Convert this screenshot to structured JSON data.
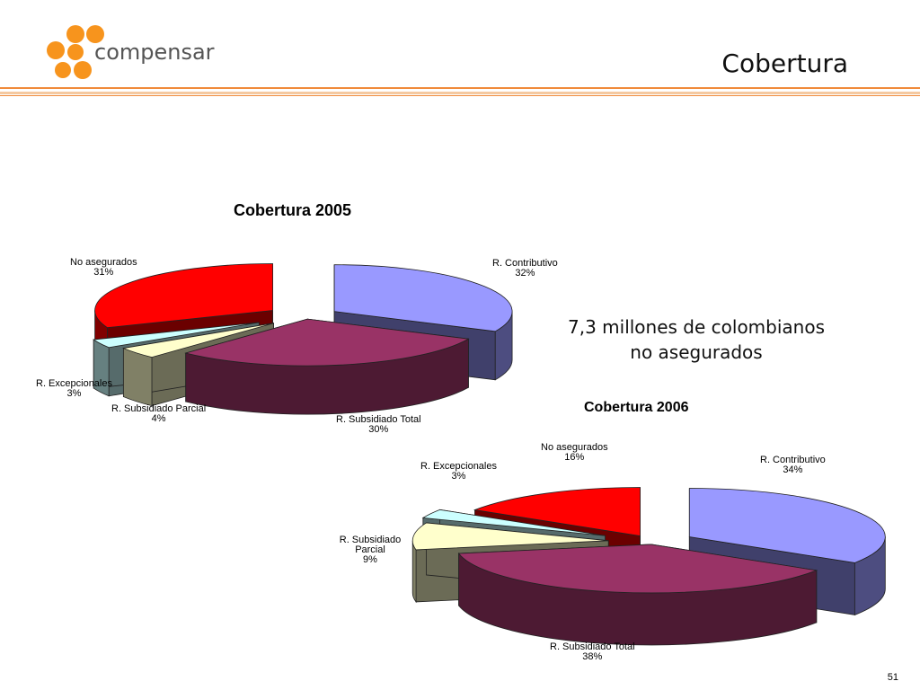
{
  "header": {
    "logo_text": "compensar",
    "title": "Cobertura"
  },
  "note": {
    "line1": "7,3 millones de colombianos",
    "line2": "no asegurados"
  },
  "page_number": "51",
  "colors": {
    "accent": "#F08A3A",
    "logo_orange": "#F7941D"
  },
  "chart_data": [
    {
      "type": "pie",
      "title": "Cobertura 2005",
      "slices": [
        {
          "label": "R. Contributivo",
          "value": 32,
          "display": "32%",
          "color": "#9999FF"
        },
        {
          "label": "R. Subsidiado Total",
          "value": 30,
          "display": "30%",
          "color": "#993366"
        },
        {
          "label": "R. Subsidiado Parcial",
          "value": 4,
          "display": "4%",
          "color": "#FFFFCC"
        },
        {
          "label": "R. Excepcionales",
          "value": 3,
          "display": "3%",
          "color": "#CCFFFF"
        },
        {
          "label": "No asegurados",
          "value": 31,
          "display": "31%",
          "color": "#FF0000"
        }
      ]
    },
    {
      "type": "pie",
      "title": "Cobertura 2006",
      "slices": [
        {
          "label": "R. Contributivo",
          "value": 34,
          "display": "34%",
          "color": "#9999FF"
        },
        {
          "label": "R. Subsidiado Total",
          "value": 38,
          "display": "38%",
          "color": "#993366"
        },
        {
          "label": "R. Subsidiado Parcial",
          "value": 9,
          "display": "9%",
          "color": "#FFFFCC"
        },
        {
          "label": "R. Excepcionales",
          "value": 3,
          "display": "3%",
          "color": "#CCFFFF"
        },
        {
          "label": "No asegurados",
          "value": 16,
          "display": "16%",
          "color": "#FF0000"
        }
      ]
    }
  ]
}
